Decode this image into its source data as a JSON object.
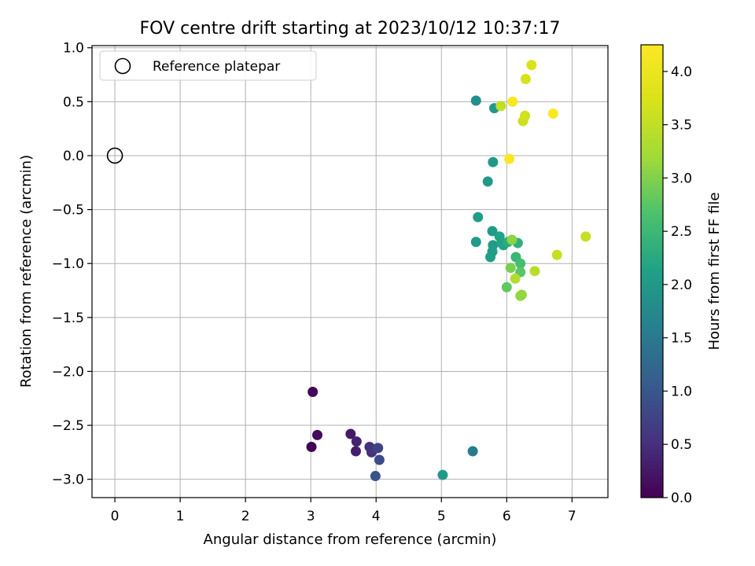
{
  "chart_data": {
    "type": "scatter",
    "title": "FOV centre drift starting at 2023/10/12 10:37:17",
    "xlabel": "Angular distance from reference (arcmin)",
    "ylabel": "Rotation from reference (arcmin)",
    "xlim": [
      -0.35,
      7.55
    ],
    "ylim": [
      -3.17,
      1.02
    ],
    "xticks": [
      0,
      1,
      2,
      3,
      4,
      5,
      6,
      7
    ],
    "yticks": [
      -3.0,
      -2.5,
      -2.0,
      -1.5,
      -1.0,
      -0.5,
      0.0,
      0.5,
      1.0
    ],
    "xtick_labels": [
      "0",
      "1",
      "2",
      "3",
      "4",
      "5",
      "6",
      "7"
    ],
    "ytick_labels": [
      "−3.0",
      "−2.5",
      "−2.0",
      "−1.5",
      "−1.0",
      "−0.5",
      "0.0",
      "0.5",
      "1.0"
    ],
    "grid": true,
    "legend": {
      "placement": "top-left",
      "entries": [
        "Reference platepar"
      ]
    },
    "colorbar": {
      "label": "Hours from first FF file",
      "range": [
        0.0,
        4.25
      ],
      "ticks": [
        0.0,
        0.5,
        1.0,
        1.5,
        2.0,
        2.5,
        3.0,
        3.5,
        4.0
      ],
      "tick_labels": [
        "0.0",
        "0.5",
        "1.0",
        "1.5",
        "2.0",
        "2.5",
        "3.0",
        "3.5",
        "4.0"
      ],
      "colormap": "viridis"
    },
    "reference": {
      "name": "Reference platepar",
      "x": 0.0,
      "y": 0.0,
      "marker": "open-circle"
    },
    "points": [
      {
        "x": 3.01,
        "y": -2.7,
        "c": 0.0
      },
      {
        "x": 3.03,
        "y": -2.19,
        "c": 0.05
      },
      {
        "x": 3.1,
        "y": -2.59,
        "c": 0.1
      },
      {
        "x": 3.61,
        "y": -2.58,
        "c": 0.25
      },
      {
        "x": 3.69,
        "y": -2.74,
        "c": 0.3
      },
      {
        "x": 3.7,
        "y": -2.65,
        "c": 0.35
      },
      {
        "x": 3.9,
        "y": -2.7,
        "c": 0.5
      },
      {
        "x": 3.93,
        "y": -2.75,
        "c": 0.55
      },
      {
        "x": 3.97,
        "y": -2.72,
        "c": 0.6
      },
      {
        "x": 4.03,
        "y": -2.71,
        "c": 0.75
      },
      {
        "x": 4.05,
        "y": -2.82,
        "c": 0.85
      },
      {
        "x": 3.99,
        "y": -2.97,
        "c": 0.95
      },
      {
        "x": 5.48,
        "y": -2.74,
        "c": 1.55
      },
      {
        "x": 5.02,
        "y": -2.96,
        "c": 2.0
      },
      {
        "x": 5.53,
        "y": 0.51,
        "c": 1.85
      },
      {
        "x": 5.81,
        "y": 0.44,
        "c": 2.0
      },
      {
        "x": 5.79,
        "y": -0.06,
        "c": 2.0
      },
      {
        "x": 5.71,
        "y": -0.24,
        "c": 2.0
      },
      {
        "x": 5.56,
        "y": -0.57,
        "c": 2.05
      },
      {
        "x": 5.53,
        "y": -0.8,
        "c": 2.05
      },
      {
        "x": 5.78,
        "y": -0.7,
        "c": 2.05
      },
      {
        "x": 5.79,
        "y": -0.83,
        "c": 2.05
      },
      {
        "x": 5.78,
        "y": -0.89,
        "c": 2.05
      },
      {
        "x": 5.75,
        "y": -0.94,
        "c": 2.1
      },
      {
        "x": 5.89,
        "y": -0.75,
        "c": 2.15
      },
      {
        "x": 5.92,
        "y": -0.81,
        "c": 2.15
      },
      {
        "x": 5.95,
        "y": -0.83,
        "c": 2.15
      },
      {
        "x": 6.02,
        "y": -0.8,
        "c": 2.3
      },
      {
        "x": 6.17,
        "y": -0.81,
        "c": 2.35
      },
      {
        "x": 6.14,
        "y": -0.94,
        "c": 2.45
      },
      {
        "x": 6.21,
        "y": -1.0,
        "c": 2.6
      },
      {
        "x": 6.21,
        "y": -1.08,
        "c": 2.75
      },
      {
        "x": 6.0,
        "y": -1.22,
        "c": 2.8
      },
      {
        "x": 6.06,
        "y": -1.04,
        "c": 2.95
      },
      {
        "x": 6.08,
        "y": -0.78,
        "c": 3.05
      },
      {
        "x": 6.21,
        "y": -1.3,
        "c": 3.1
      },
      {
        "x": 6.23,
        "y": -1.29,
        "c": 3.1
      },
      {
        "x": 6.13,
        "y": -1.14,
        "c": 3.35
      },
      {
        "x": 6.43,
        "y": -1.07,
        "c": 3.4
      },
      {
        "x": 6.77,
        "y": -0.92,
        "c": 3.55
      },
      {
        "x": 7.21,
        "y": -0.75,
        "c": 3.55
      },
      {
        "x": 5.91,
        "y": 0.46,
        "c": 3.5
      },
      {
        "x": 6.25,
        "y": 0.32,
        "c": 3.6
      },
      {
        "x": 6.28,
        "y": 0.37,
        "c": 3.65
      },
      {
        "x": 6.29,
        "y": 0.71,
        "c": 3.7
      },
      {
        "x": 6.38,
        "y": 0.84,
        "c": 3.75
      },
      {
        "x": 6.04,
        "y": -0.03,
        "c": 4.2
      },
      {
        "x": 6.09,
        "y": 0.5,
        "c": 4.2
      },
      {
        "x": 6.71,
        "y": 0.39,
        "c": 4.2
      }
    ]
  }
}
